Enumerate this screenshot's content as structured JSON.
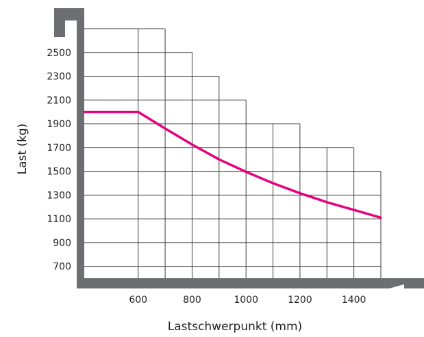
{
  "chart_data": {
    "type": "line",
    "title": "",
    "xlabel": "Lastschwerpunkt (mm)",
    "ylabel": "Last (kg)",
    "x_ticks": [
      "600",
      "800",
      "1000",
      "1200",
      "1400"
    ],
    "y_ticks": [
      "700",
      "900",
      "1100",
      "1300",
      "1500",
      "1700",
      "1900",
      "2100",
      "2300",
      "2500"
    ],
    "xlim": [
      400,
      1500
    ],
    "ylim": [
      600,
      2700
    ],
    "grid": true,
    "grid_steps": [
      {
        "x_from": 400,
        "x_to": 600,
        "y_top": 2700
      },
      {
        "x_from": 600,
        "x_to": 700,
        "y_top": 2700
      },
      {
        "x_from": 700,
        "x_to": 800,
        "y_top": 2500
      },
      {
        "x_from": 800,
        "x_to": 900,
        "y_top": 2300
      },
      {
        "x_from": 900,
        "x_to": 1000,
        "y_top": 2100
      },
      {
        "x_from": 1000,
        "x_to": 1100,
        "y_top": 1900
      },
      {
        "x_from": 1100,
        "x_to": 1200,
        "y_top": 1900
      },
      {
        "x_from": 1200,
        "x_to": 1300,
        "y_top": 1700
      },
      {
        "x_from": 1300,
        "x_to": 1400,
        "y_top": 1700
      },
      {
        "x_from": 1400,
        "x_to": 1500,
        "y_top": 1500
      }
    ],
    "series": [
      {
        "color": "#e6007e",
        "x": [
          400,
          600,
          700,
          800,
          900,
          1000,
          1100,
          1200,
          1300,
          1400,
          1500
        ],
        "y": [
          2000,
          2000,
          1860,
          1725,
          1600,
          1495,
          1400,
          1315,
          1240,
          1175,
          1110
        ]
      }
    ],
    "axis_color": "#6d6e71",
    "grid_color": "#3c3c3c"
  }
}
